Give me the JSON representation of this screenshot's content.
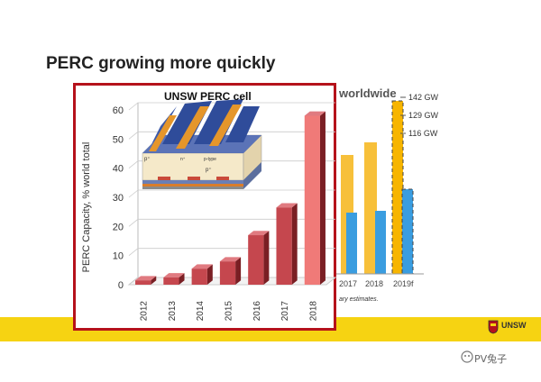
{
  "slide": {
    "title": "PERC growing more quickly",
    "logo_text": "UNSW",
    "watermark": "PV兔子"
  },
  "background_chart": {
    "heading": "worldwide",
    "gw_labels": [
      "142 GW",
      "129 GW",
      "116 GW"
    ],
    "x_ticks": [
      "2017",
      "2018",
      "2019f"
    ],
    "note": "ary estimates."
  },
  "colors": {
    "frame": "#b5121b",
    "bar_front": "#c5474e",
    "bar_side": "#7a1f24",
    "bar_top": "#e07a80",
    "bar_2018_front": "#f07a78",
    "yellow": "#f6d312",
    "bg_orange": "#f7c03a",
    "bg_blue": "#3a9de0"
  },
  "chart_data": {
    "type": "bar",
    "title": "UNSW PERC cell",
    "xlabel": "",
    "ylabel": "PERC Capacity, % world total",
    "categories": [
      "2012",
      "2013",
      "2014",
      "2015",
      "2016",
      "2017",
      "2018"
    ],
    "values": [
      1.5,
      2.5,
      5.5,
      8,
      17,
      26.5,
      58
    ],
    "ylim": [
      0,
      60
    ],
    "yticks": [
      0,
      10,
      20,
      30,
      40,
      50,
      60
    ],
    "grid": true
  }
}
